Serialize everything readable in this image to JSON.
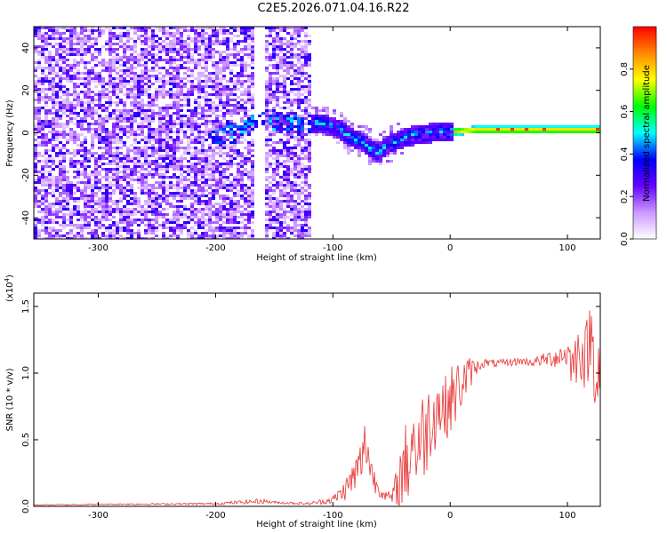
{
  "title": "C2E5.2026.071.04.16.R22",
  "chart_data": [
    {
      "type": "heatmap",
      "xlabel": "Height of straight line (km)",
      "ylabel": "Frequency (Hz)",
      "xlim": [
        -355,
        128
      ],
      "ylim": [
        -50,
        50
      ],
      "xticks": [
        -300,
        -200,
        -100,
        0,
        100
      ],
      "yticks": [
        -40,
        -20,
        0,
        20,
        40
      ],
      "xtick_labels": [
        "-300",
        "-200",
        "-100",
        "0",
        "100"
      ],
      "ytick_labels": [
        "-40",
        "-20",
        "0",
        "20",
        "40"
      ],
      "colorbar": {
        "label": "Normalized spectral amplitude",
        "range": [
          0,
          1
        ],
        "ticks": [
          0.0,
          0.2,
          0.4,
          0.6,
          0.8
        ],
        "tick_labels": [
          "0.0",
          "0.2",
          "0.4",
          "0.6",
          "0.8"
        ],
        "colors": [
          "#ffffff",
          "#cc99ff",
          "#6600ff",
          "#0000ff",
          "#00ffff",
          "#00ff00",
          "#ffff00",
          "#ff8800",
          "#ff0000"
        ]
      },
      "ridge": {
        "x": [
          -205,
          -180,
          -165,
          -150,
          -130,
          -110,
          -95,
          -85,
          -75,
          -68,
          -62,
          -55,
          -45,
          -35,
          -25,
          -10,
          0,
          20,
          50,
          80,
          100,
          128
        ],
        "freq": [
          0,
          0,
          8,
          6,
          5,
          5,
          2,
          -2,
          -4,
          -7,
          -9,
          -5,
          -3,
          -1,
          0,
          1,
          1,
          2,
          2,
          2,
          2,
          2
        ]
      }
    },
    {
      "type": "line",
      "xlabel": "Height of straight line (km)",
      "ylabel": "SNR (10 * v/v)",
      "y_multiplier_label": "(x10",
      "y_multiplier_exp": "4",
      "xlim": [
        -355,
        128
      ],
      "ylim": [
        0,
        1.6
      ],
      "xticks": [
        -300,
        -200,
        -100,
        0,
        100
      ],
      "yticks": [
        0.0,
        0.5,
        1.0,
        1.5
      ],
      "xtick_labels": [
        "-300",
        "-200",
        "-100",
        "0",
        "100"
      ],
      "ytick_labels": [
        "0.0",
        "0.5",
        "1.0",
        "1.5"
      ],
      "series": [
        {
          "color": "#e83030",
          "x": [
            -355,
            -300,
            -200,
            -160,
            -150,
            -120,
            -100,
            -90,
            -80,
            -75,
            -72,
            -68,
            -65,
            -60,
            -55,
            -50,
            -45,
            -40,
            -35,
            -32,
            -30,
            -25,
            -20,
            -15,
            -10,
            -5,
            0,
            5,
            10,
            15,
            20,
            25,
            30,
            40,
            50,
            60,
            70,
            80,
            90,
            100,
            105,
            110,
            115,
            120,
            125,
            128
          ],
          "y": [
            0.01,
            0.015,
            0.02,
            0.04,
            0.03,
            0.02,
            0.05,
            0.12,
            0.25,
            0.35,
            0.5,
            0.3,
            0.2,
            0.12,
            0.08,
            0.06,
            0.12,
            0.3,
            0.35,
            0.55,
            0.42,
            0.5,
            0.58,
            0.7,
            0.75,
            0.72,
            0.8,
            0.85,
            0.92,
            0.98,
            1.03,
            1.06,
            1.08,
            1.07,
            1.08,
            1.09,
            1.08,
            1.1,
            1.12,
            1.15,
            1.05,
            1.2,
            1.1,
            1.3,
            1.0,
            1.1
          ],
          "noise": [
            0.003,
            0.005,
            0.008,
            0.02,
            0.01,
            0.01,
            0.03,
            0.08,
            0.15,
            0.2,
            0.2,
            0.18,
            0.1,
            0.05,
            0.04,
            0.05,
            0.2,
            0.3,
            0.35,
            0.3,
            0.3,
            0.35,
            0.35,
            0.3,
            0.3,
            0.25,
            0.25,
            0.25,
            0.2,
            0.15,
            0.08,
            0.04,
            0.03,
            0.03,
            0.03,
            0.03,
            0.03,
            0.05,
            0.08,
            0.12,
            0.2,
            0.22,
            0.25,
            0.3,
            0.35,
            0.3
          ]
        }
      ]
    }
  ]
}
